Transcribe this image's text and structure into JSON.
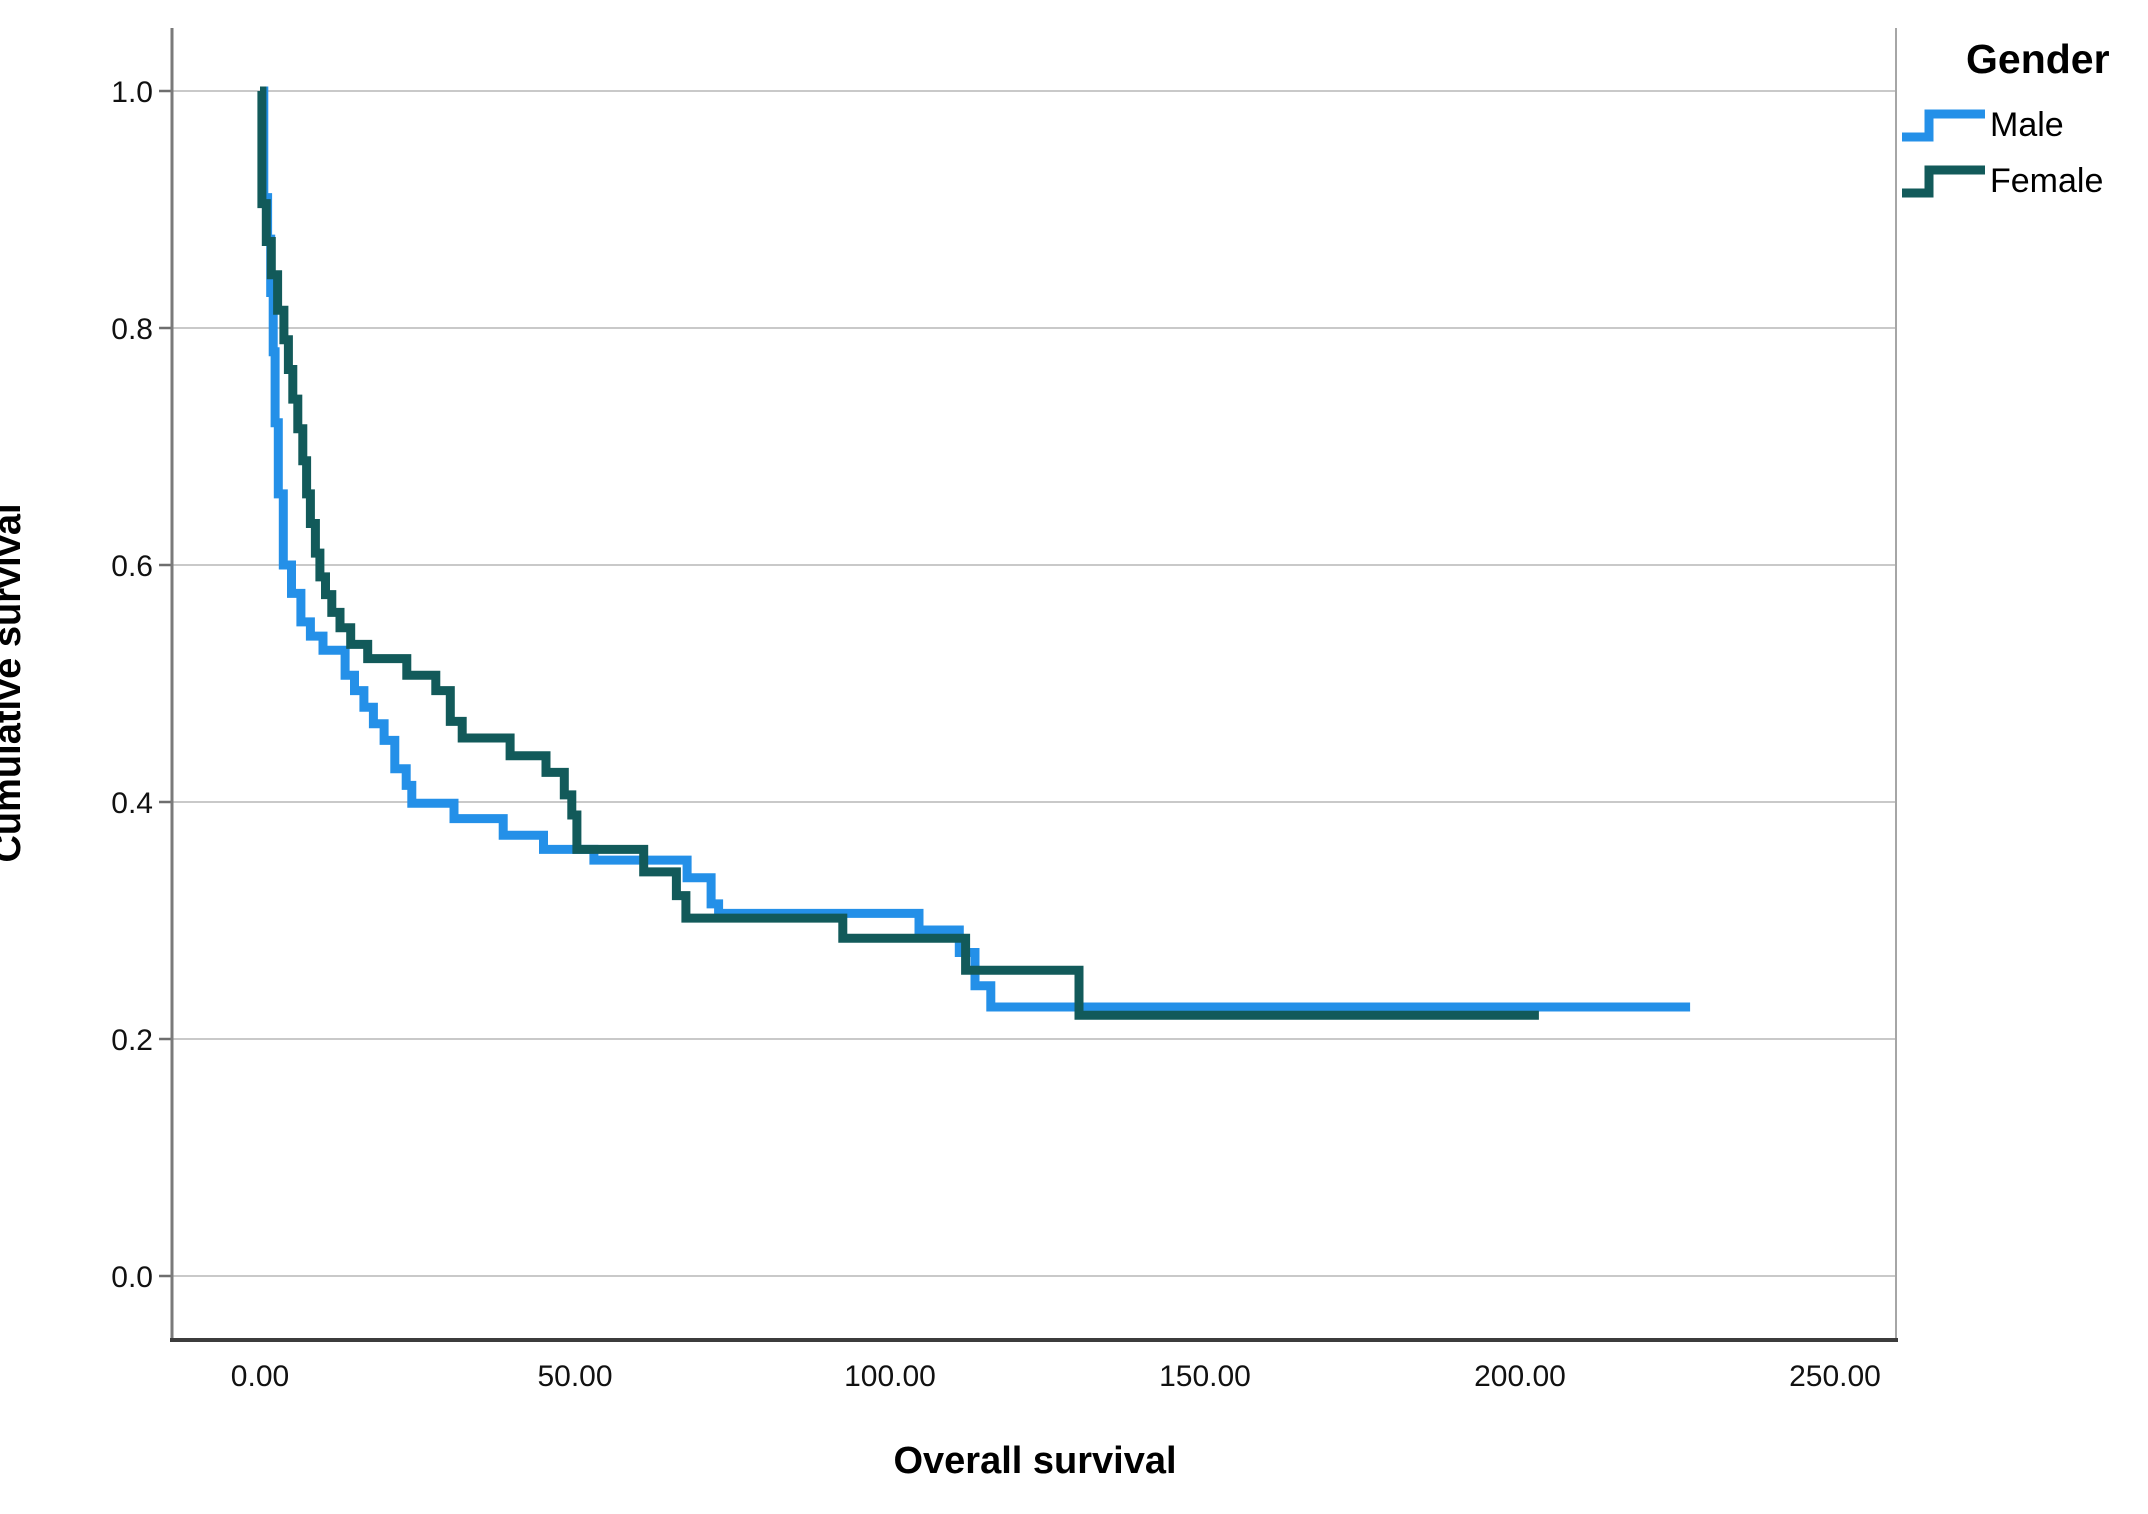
{
  "chart_data": {
    "type": "line",
    "subtype": "kaplan-meier-step",
    "title": "",
    "xlabel": "Overall survival",
    "ylabel": "Cumulative survival",
    "xlim": [
      -14,
      260
    ],
    "ylim": [
      -0.055,
      1.055
    ],
    "grid": "horizontal-only",
    "x_ticks": [
      {
        "value": 0,
        "label": "0.00"
      },
      {
        "value": 50,
        "label": "50.00"
      },
      {
        "value": 100,
        "label": "100.00"
      },
      {
        "value": 150,
        "label": "150.00"
      },
      {
        "value": 200,
        "label": "200.00"
      },
      {
        "value": 250,
        "label": "250.00"
      }
    ],
    "y_ticks": [
      {
        "value": 1.0,
        "label": "1.0"
      },
      {
        "value": 0.8,
        "label": "0.8"
      },
      {
        "value": 0.6,
        "label": "0.6"
      },
      {
        "value": 0.4,
        "label": "0.4"
      },
      {
        "value": 0.2,
        "label": "0.2"
      },
      {
        "value": 0.0,
        "label": "0.0"
      }
    ],
    "legend": {
      "title": "Gender",
      "position": "outside-top-right",
      "entries": [
        "Male",
        "Female"
      ]
    },
    "series": [
      {
        "name": "Male",
        "color": "#2490E8",
        "end_x": 227,
        "steps": [
          [
            0,
            1.0
          ],
          [
            0.6,
            0.91
          ],
          [
            1.2,
            0.875
          ],
          [
            1.7,
            0.83
          ],
          [
            2.1,
            0.78
          ],
          [
            2.4,
            0.72
          ],
          [
            2.9,
            0.66
          ],
          [
            3.7,
            0.6
          ],
          [
            5,
            0.576
          ],
          [
            6.5,
            0.552
          ],
          [
            8,
            0.54
          ],
          [
            10,
            0.528
          ],
          [
            13.5,
            0.507
          ],
          [
            15,
            0.494
          ],
          [
            16.5,
            0.48
          ],
          [
            18,
            0.466
          ],
          [
            19.7,
            0.452
          ],
          [
            21.4,
            0.428
          ],
          [
            23.2,
            0.414
          ],
          [
            24.1,
            0.399
          ],
          [
            30.8,
            0.386
          ],
          [
            38.6,
            0.372
          ],
          [
            45,
            0.36
          ],
          [
            53,
            0.351
          ],
          [
            67.8,
            0.336
          ],
          [
            71.6,
            0.314
          ],
          [
            72.8,
            0.306
          ],
          [
            104.6,
            0.292
          ],
          [
            111,
            0.273
          ],
          [
            113.5,
            0.245
          ],
          [
            116,
            0.227
          ]
        ]
      },
      {
        "name": "Female",
        "color": "#125A5A",
        "end_x": 203,
        "steps": [
          [
            0,
            1.0
          ],
          [
            0.3,
            0.905
          ],
          [
            1,
            0.873
          ],
          [
            1.8,
            0.845
          ],
          [
            2.8,
            0.815
          ],
          [
            3.8,
            0.79
          ],
          [
            4.5,
            0.765
          ],
          [
            5.2,
            0.74
          ],
          [
            6,
            0.715
          ],
          [
            6.8,
            0.688
          ],
          [
            7.4,
            0.66
          ],
          [
            8,
            0.635
          ],
          [
            8.8,
            0.61
          ],
          [
            9.5,
            0.59
          ],
          [
            10.4,
            0.575
          ],
          [
            11.4,
            0.56
          ],
          [
            12.7,
            0.547
          ],
          [
            14.4,
            0.533
          ],
          [
            17.1,
            0.521
          ],
          [
            23.3,
            0.507
          ],
          [
            27.9,
            0.494
          ],
          [
            30.2,
            0.468
          ],
          [
            32.1,
            0.454
          ],
          [
            39.7,
            0.439
          ],
          [
            45.4,
            0.425
          ],
          [
            48.3,
            0.406
          ],
          [
            49.5,
            0.389
          ],
          [
            50.3,
            0.36
          ],
          [
            60.9,
            0.341
          ],
          [
            66.1,
            0.321
          ],
          [
            67.6,
            0.302
          ],
          [
            92.5,
            0.285
          ],
          [
            112,
            0.258
          ],
          [
            130,
            0.22
          ]
        ]
      }
    ],
    "axis_colors": {
      "gridline": "#C9C9C9",
      "y_axis": "#7A7A7A",
      "x_axis": "#3C3C3C",
      "right_border": "#A6A6A6",
      "tick": "#6E6E6E",
      "label": "#111111"
    }
  }
}
